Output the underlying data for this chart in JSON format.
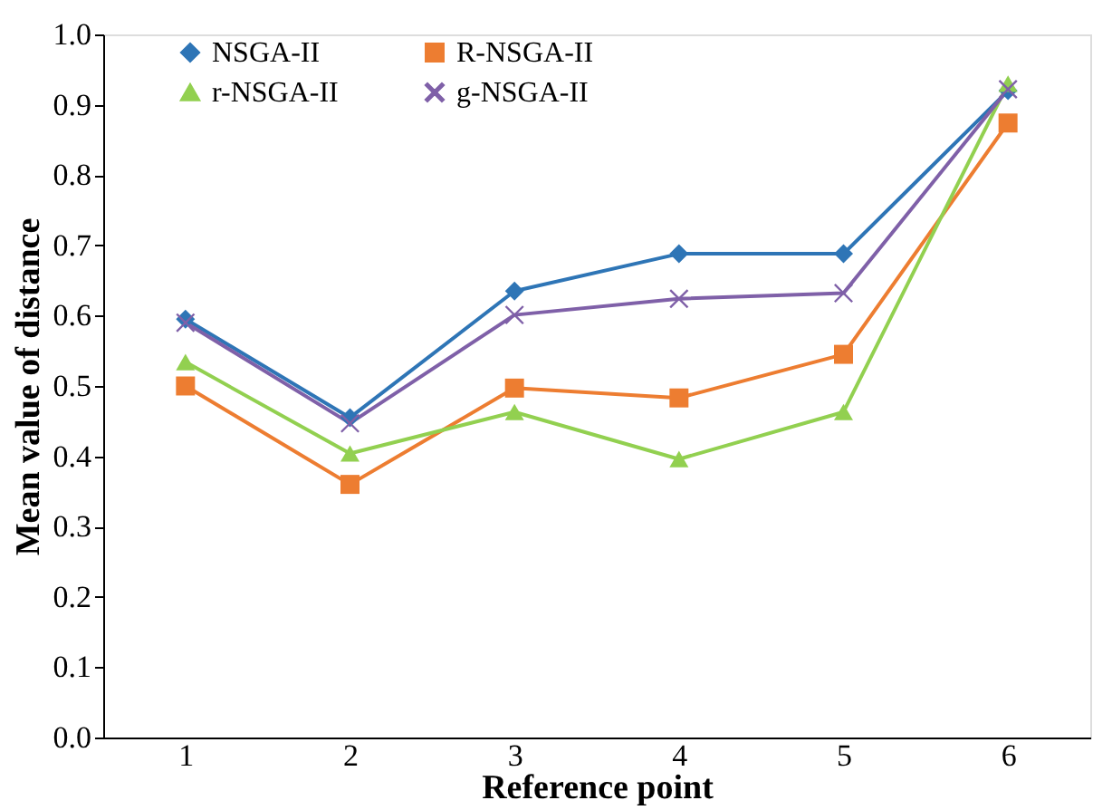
{
  "chart_data": {
    "type": "line",
    "xlabel": "Reference point",
    "ylabel": "Mean value of distance",
    "categories": [
      "1",
      "2",
      "3",
      "4",
      "5",
      "6"
    ],
    "series": [
      {
        "name": "NSGA-II",
        "color": "#2e75b6",
        "marker": "diamond",
        "values": [
          0.595,
          0.455,
          0.635,
          0.688,
          0.688,
          0.92
        ]
      },
      {
        "name": "R-NSGA-II",
        "color": "#ed7d31",
        "marker": "square",
        "values": [
          0.5,
          0.36,
          0.497,
          0.483,
          0.545,
          0.874
        ]
      },
      {
        "name": "r-NSGA-II",
        "color": "#92d050",
        "marker": "triangle",
        "values": [
          0.534,
          0.404,
          0.463,
          0.396,
          0.463,
          0.93
        ]
      },
      {
        "name": "g-NSGA-II",
        "color": "#7f60a8",
        "marker": "cross",
        "values": [
          0.59,
          0.447,
          0.601,
          0.624,
          0.632,
          0.922
        ]
      }
    ],
    "ylim": [
      0,
      1
    ],
    "yticks": [
      {
        "value": 0,
        "label": "0.0"
      },
      0.1,
      0.2,
      0.3,
      0.4,
      0.5,
      0.6,
      0.7,
      0.8,
      0.9,
      {
        "value": 1,
        "label": "1.0"
      }
    ],
    "grid": false,
    "legend": "top",
    "line_style": "solid"
  }
}
